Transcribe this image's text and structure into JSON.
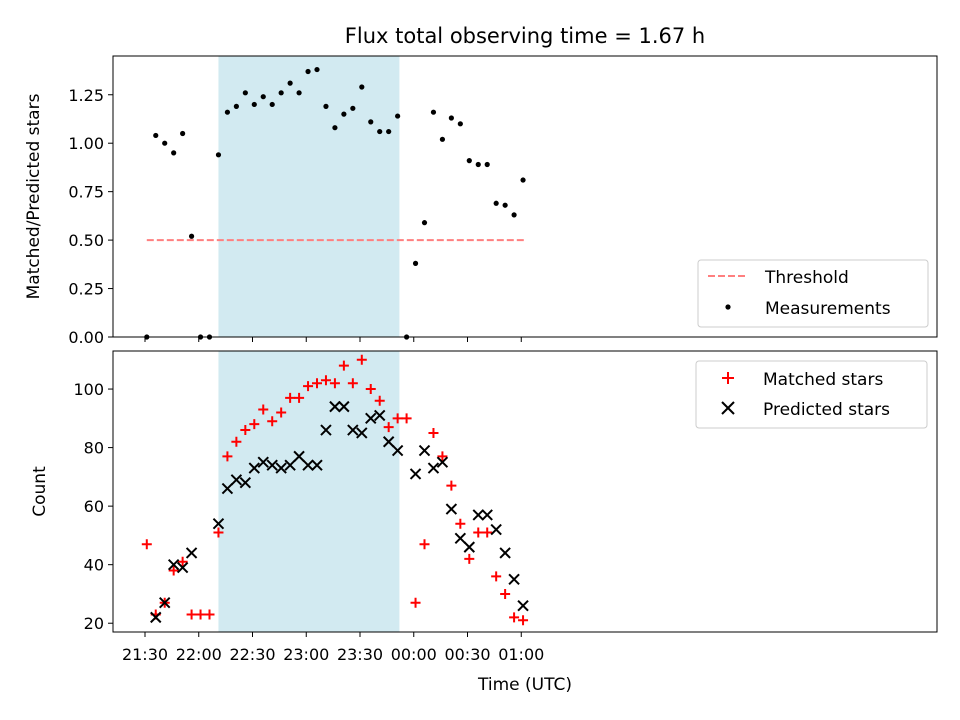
{
  "chart_data": [
    {
      "type": "scatter",
      "title": "Flux total observing time = 1.67 h",
      "ylabel": "Matched/Predicted stars",
      "ylim": [
        0,
        1.45
      ],
      "yticks": [
        0.0,
        0.25,
        0.5,
        0.75,
        1.0,
        1.25
      ],
      "ytick_labels": [
        "0.00",
        "0.25",
        "0.50",
        "0.75",
        "1.00",
        "1.25"
      ],
      "grid": false,
      "legend_position": "lower-right",
      "shaded_interval": {
        "start": "22:11",
        "end": "23:52",
        "color": "#add8e6"
      },
      "threshold": {
        "name": "Threshold",
        "value": 0.5,
        "x_start": "21:31",
        "x_end": "01:02",
        "color": "#ff7f7f"
      },
      "series": [
        {
          "name": "Measurements",
          "marker": "dot",
          "color": "#000000",
          "points": [
            [
              "21:31",
              0.0
            ],
            [
              "21:36",
              1.04
            ],
            [
              "21:41",
              1.0
            ],
            [
              "21:46",
              0.95
            ],
            [
              "21:51",
              1.05
            ],
            [
              "21:56",
              0.52
            ],
            [
              "22:01",
              0.0
            ],
            [
              "22:06",
              0.0
            ],
            [
              "22:11",
              0.94
            ],
            [
              "22:16",
              1.16
            ],
            [
              "22:21",
              1.19
            ],
            [
              "22:26",
              1.26
            ],
            [
              "22:31",
              1.2
            ],
            [
              "22:36",
              1.24
            ],
            [
              "22:41",
              1.2
            ],
            [
              "22:46",
              1.26
            ],
            [
              "22:51",
              1.31
            ],
            [
              "22:56",
              1.26
            ],
            [
              "23:01",
              1.37
            ],
            [
              "23:06",
              1.38
            ],
            [
              "23:11",
              1.19
            ],
            [
              "23:16",
              1.08
            ],
            [
              "23:21",
              1.15
            ],
            [
              "23:26",
              1.18
            ],
            [
              "23:31",
              1.29
            ],
            [
              "23:36",
              1.11
            ],
            [
              "23:41",
              1.06
            ],
            [
              "23:46",
              1.06
            ],
            [
              "23:51",
              1.14
            ],
            [
              "23:56",
              0.0
            ],
            [
              "00:01",
              0.38
            ],
            [
              "00:06",
              0.59
            ],
            [
              "00:11",
              1.16
            ],
            [
              "00:16",
              1.02
            ],
            [
              "00:21",
              1.13
            ],
            [
              "00:26",
              1.1
            ],
            [
              "00:31",
              0.91
            ],
            [
              "00:36",
              0.89
            ],
            [
              "00:41",
              0.89
            ],
            [
              "00:46",
              0.69
            ],
            [
              "00:51",
              0.68
            ],
            [
              "00:56",
              0.63
            ],
            [
              "01:01",
              0.81
            ]
          ]
        }
      ],
      "legend": [
        "Threshold",
        "Measurements"
      ]
    },
    {
      "type": "scatter",
      "xlabel": "Time (UTC)",
      "ylabel": "Count",
      "ylim": [
        17,
        113
      ],
      "yticks": [
        20,
        40,
        60,
        80,
        100
      ],
      "xticks": [
        "21:30",
        "22:00",
        "22:30",
        "23:00",
        "23:30",
        "00:00",
        "00:30",
        "01:00"
      ],
      "grid": false,
      "legend_position": "upper-right",
      "shaded_interval": {
        "start": "22:11",
        "end": "23:52",
        "color": "#add8e6"
      },
      "series": [
        {
          "name": "Matched stars",
          "marker": "plus",
          "color": "#ff0000",
          "points": [
            [
              "21:31",
              47
            ],
            [
              "21:36",
              23
            ],
            [
              "21:41",
              27
            ],
            [
              "21:46",
              38
            ],
            [
              "21:51",
              41
            ],
            [
              "21:56",
              23
            ],
            [
              "22:01",
              23
            ],
            [
              "22:06",
              23
            ],
            [
              "22:11",
              51
            ],
            [
              "22:16",
              77
            ],
            [
              "22:21",
              82
            ],
            [
              "22:26",
              86
            ],
            [
              "22:31",
              88
            ],
            [
              "22:36",
              93
            ],
            [
              "22:41",
              89
            ],
            [
              "22:46",
              92
            ],
            [
              "22:51",
              97
            ],
            [
              "22:56",
              97
            ],
            [
              "23:01",
              101
            ],
            [
              "23:06",
              102
            ],
            [
              "23:11",
              103
            ],
            [
              "23:16",
              102
            ],
            [
              "23:21",
              108
            ],
            [
              "23:26",
              102
            ],
            [
              "23:31",
              110
            ],
            [
              "23:36",
              100
            ],
            [
              "23:41",
              96
            ],
            [
              "23:46",
              87
            ],
            [
              "23:51",
              90
            ],
            [
              "23:56",
              90
            ],
            [
              "00:01",
              27
            ],
            [
              "00:06",
              47
            ],
            [
              "00:11",
              85
            ],
            [
              "00:16",
              77
            ],
            [
              "00:21",
              67
            ],
            [
              "00:26",
              54
            ],
            [
              "00:31",
              42
            ],
            [
              "00:36",
              51
            ],
            [
              "00:41",
              51
            ],
            [
              "00:46",
              36
            ],
            [
              "00:51",
              30
            ],
            [
              "00:56",
              22
            ],
            [
              "01:01",
              21
            ]
          ]
        },
        {
          "name": "Predicted stars",
          "marker": "x",
          "color": "#000000",
          "points": [
            [
              "21:36",
              22
            ],
            [
              "21:41",
              27
            ],
            [
              "21:46",
              40
            ],
            [
              "21:51",
              39
            ],
            [
              "21:56",
              44
            ],
            [
              "22:11",
              54
            ],
            [
              "22:16",
              66
            ],
            [
              "22:21",
              69
            ],
            [
              "22:26",
              68
            ],
            [
              "22:31",
              73
            ],
            [
              "22:36",
              75
            ],
            [
              "22:41",
              74
            ],
            [
              "22:46",
              73
            ],
            [
              "22:51",
              74
            ],
            [
              "22:56",
              77
            ],
            [
              "23:01",
              74
            ],
            [
              "23:06",
              74
            ],
            [
              "23:11",
              86
            ],
            [
              "23:16",
              94
            ],
            [
              "23:21",
              94
            ],
            [
              "23:26",
              86
            ],
            [
              "23:31",
              85
            ],
            [
              "23:36",
              90
            ],
            [
              "23:41",
              91
            ],
            [
              "23:46",
              82
            ],
            [
              "23:51",
              79
            ],
            [
              "00:01",
              71
            ],
            [
              "00:06",
              79
            ],
            [
              "00:11",
              73
            ],
            [
              "00:16",
              75
            ],
            [
              "00:21",
              59
            ],
            [
              "00:26",
              49
            ],
            [
              "00:31",
              46
            ],
            [
              "00:36",
              57
            ],
            [
              "00:41",
              57
            ],
            [
              "00:46",
              52
            ],
            [
              "00:51",
              44
            ],
            [
              "00:56",
              35
            ],
            [
              "01:01",
              26
            ]
          ]
        }
      ],
      "legend": [
        "Matched stars",
        "Predicted stars"
      ]
    }
  ]
}
